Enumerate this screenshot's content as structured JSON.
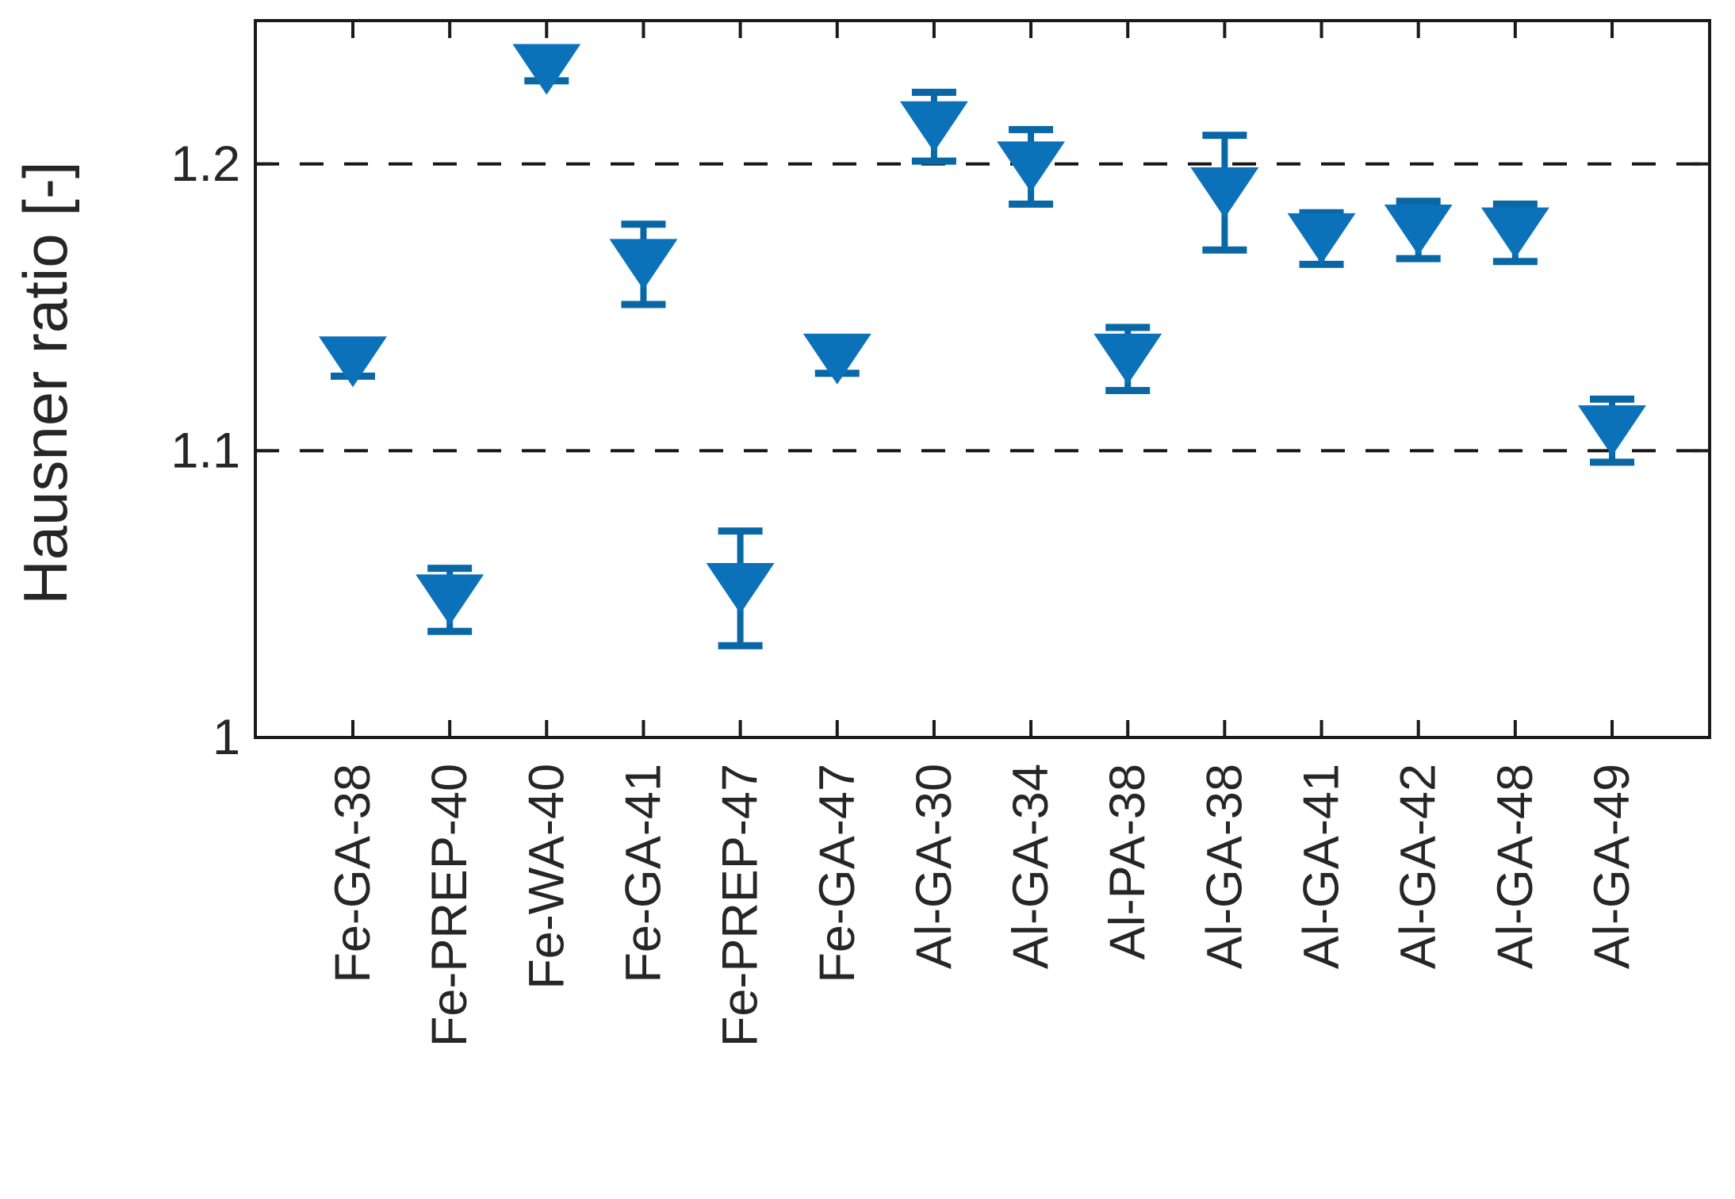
{
  "figure": {
    "background": "#ffffff",
    "axis_color": "#1a1a1a",
    "label_color": "#262626",
    "marker_color": "#0b72ba",
    "errorbar_color": "#0a67a6",
    "refline_color": "#141414"
  },
  "chart_data": {
    "type": "scatter",
    "marker": "triangle-down",
    "title": "",
    "xlabel": "",
    "ylabel": "Hausner ratio [-]",
    "ylim": [
      1.0,
      1.25
    ],
    "grid": "horizontal dashed reference lines only",
    "legend": "none",
    "yticks": [
      {
        "value": 1.0,
        "label": "1"
      },
      {
        "value": 1.1,
        "label": "1.1"
      },
      {
        "value": 1.2,
        "label": "1.2"
      }
    ],
    "reference_lines": [
      {
        "value": 1.1,
        "style": "dashed"
      },
      {
        "value": 1.2,
        "style": "dashed"
      }
    ],
    "categories": [
      "Fe-GA-38",
      "Fe-PREP-40",
      "Fe-WA-40",
      "Fe-GA-41",
      "Fe-PREP-47",
      "Fe-GA-47",
      "Al-GA-30",
      "Al-GA-34",
      "Al-PA-38",
      "Al-GA-38",
      "Al-GA-41",
      "Al-GA-42",
      "Al-GA-48",
      "Al-GA-49"
    ],
    "values": [
      1.131,
      1.048,
      1.233,
      1.165,
      1.052,
      1.132,
      1.213,
      1.199,
      1.132,
      1.19,
      1.174,
      1.177,
      1.176,
      1.107
    ],
    "errors": [
      0.005,
      0.011,
      0.004,
      0.014,
      0.02,
      0.005,
      0.012,
      0.013,
      0.011,
      0.02,
      0.009,
      0.01,
      0.01,
      0.011
    ]
  }
}
